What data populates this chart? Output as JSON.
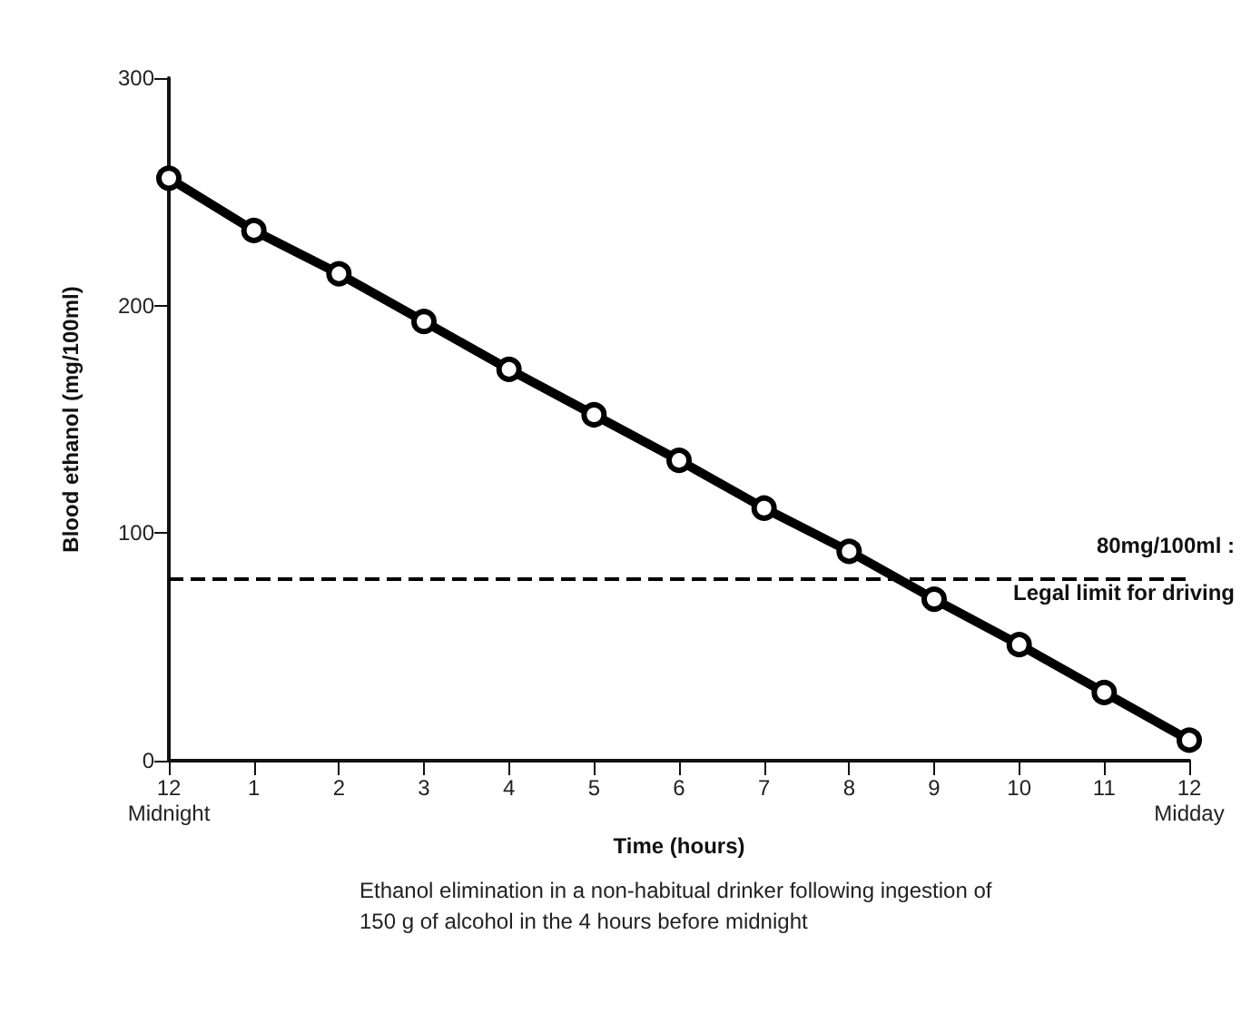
{
  "chart_data": {
    "type": "line",
    "xlabel": "Time (hours)",
    "ylabel": "Blood ethanol (mg/100ml)",
    "annotations": [
      "Ethanol elimination in a non-habitual drinker following ingestion of 150 g of alcohol in the 4 hours before midnight"
    ],
    "categories": [
      "12\nMidnight",
      "1",
      "2",
      "3",
      "4",
      "5",
      "6",
      "7",
      "8",
      "9",
      "10",
      "11",
      "12\nMidday"
    ],
    "series": [
      {
        "color": "#000000",
        "values": [
          256,
          233,
          214,
          193,
          172,
          152,
          132,
          111,
          92,
          71,
          51,
          30,
          9
        ]
      }
    ],
    "ylim": [
      0,
      300
    ],
    "yticks": [
      0,
      100,
      200,
      300
    ],
    "ref_lines": [
      {
        "axis": "y",
        "value": 80,
        "label": "80mg/100ml :\nLegal limit for driving",
        "color": "#000000",
        "line_style": "dashed"
      }
    ],
    "marker": "circle",
    "line_style": "solid"
  }
}
